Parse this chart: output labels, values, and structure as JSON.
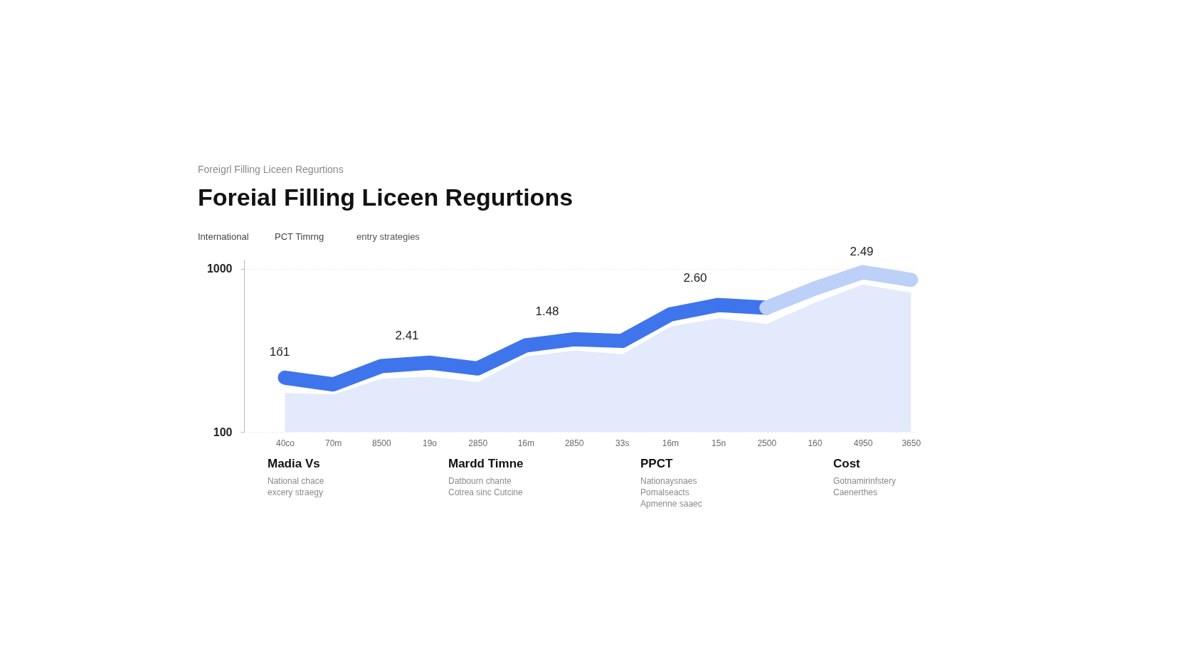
{
  "chart_data": {
    "type": "line",
    "title": "Foreial Filling Liceen Regurtions",
    "subtitle": "Foreigrl Filling Liceen Regurtions",
    "categories": [
      "40co",
      "70m",
      "8500",
      "19o",
      "2850",
      "16m",
      "2850",
      "33s",
      "16m",
      "15n",
      "2500",
      "160",
      "4950",
      "3650"
    ],
    "ylim": [
      100,
      1050
    ],
    "yticks": [
      100,
      1000
    ],
    "grid": "y",
    "line_style": "solid",
    "series": [
      {
        "type": "area",
        "color": "#dbe5fb",
        "values": [
          323,
          315,
          401,
          413,
          383,
          524,
          557,
          537,
          689,
          735,
          704,
          821,
          921,
          876
        ]
      },
      {
        "color": "#3f75ec",
        "values": [
          399,
          362,
          463,
          482,
          450,
          577,
          611,
          602,
          748,
          800,
          785,
          null,
          null,
          null
        ]
      },
      {
        "color": "#bcd0f8",
        "values": [
          null,
          null,
          null,
          null,
          null,
          null,
          null,
          null,
          null,
          null,
          785,
          891,
          981,
          939
        ]
      }
    ],
    "annotations": [
      "1ő1",
      "2.41",
      "1.48",
      "2.60",
      "2.49",
      "International",
      "PCT Timrng",
      "entry strategies",
      "Madia Vs",
      "National chace",
      "excery straegy",
      "Mardd Timne",
      "Datbourn chante",
      "Cotrea sinc Cutcine",
      "PPCT",
      "Nationaysnaes",
      "Pomalseacts",
      "Apmenne saaec",
      "Cost",
      "Gotnamirinfstery",
      "Caenerthes"
    ]
  }
}
